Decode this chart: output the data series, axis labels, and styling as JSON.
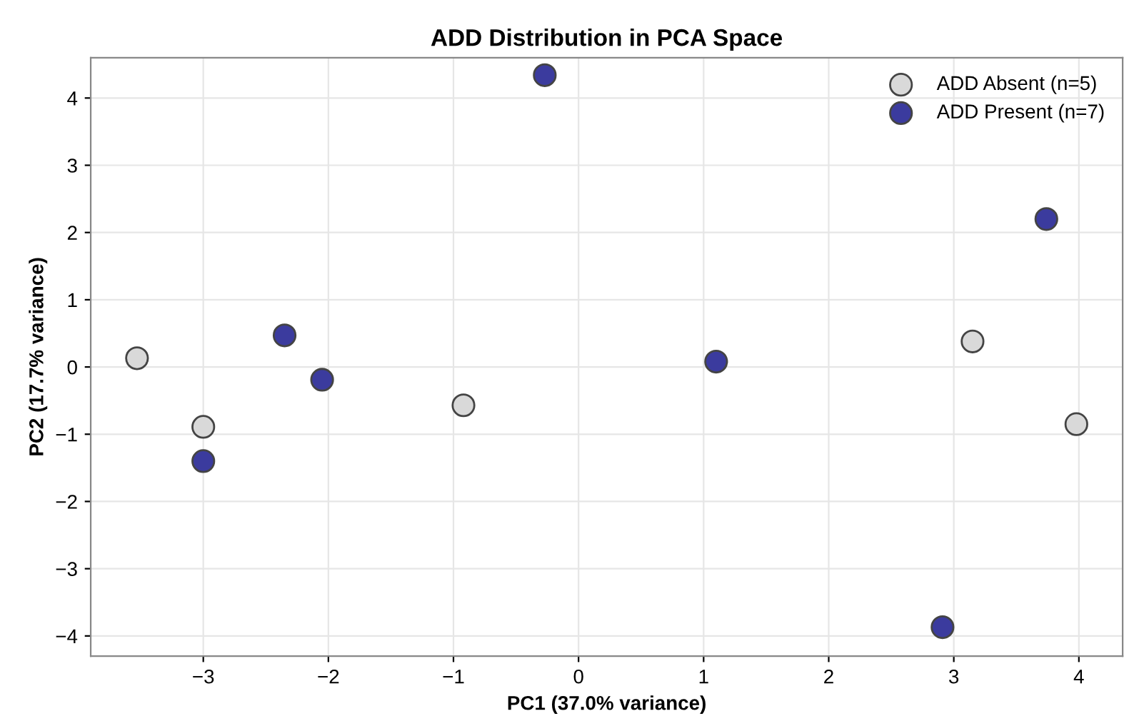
{
  "chart_data": {
    "type": "scatter",
    "title": "ADD Distribution in PCA Space",
    "xlabel": "PC1 (37.0% variance)",
    "ylabel": "PC2 (17.7% variance)",
    "series": [
      {
        "name": "ADD Absent (n=5)",
        "color": "#d9d9d9",
        "x": [
          -3.53,
          -3.0,
          -0.92,
          3.15,
          3.98
        ],
        "values": [
          0.13,
          -0.89,
          -0.57,
          0.38,
          -0.85
        ]
      },
      {
        "name": "ADD Present (n=7)",
        "color": "#3b3b9e",
        "x": [
          -0.27,
          -2.35,
          -2.05,
          -3.0,
          1.1,
          3.74,
          2.91
        ],
        "values": [
          4.34,
          0.47,
          -0.19,
          -1.4,
          0.08,
          2.2,
          -3.87
        ]
      }
    ],
    "xlim": [
      -3.9,
      4.35
    ],
    "ylim": [
      -4.3,
      4.6
    ],
    "xticks": [
      -3,
      -2,
      -1,
      0,
      1,
      2,
      3,
      4
    ],
    "yticks": [
      -4,
      -3,
      -2,
      -1,
      0,
      1,
      2,
      3,
      4
    ],
    "grid": true,
    "legend": "top right",
    "marker": "circle"
  }
}
